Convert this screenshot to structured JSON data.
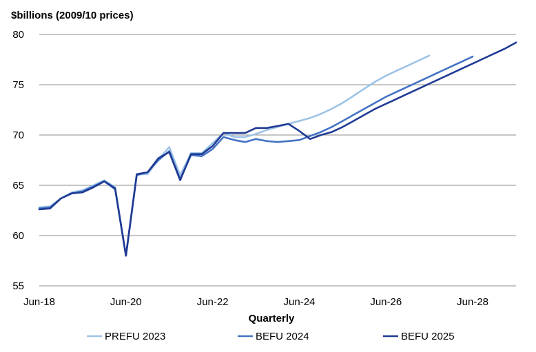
{
  "chart_data": {
    "type": "line",
    "ylabel": "$billions (2009/10 prices)",
    "xlabel": "Quarterly",
    "ylim": [
      55,
      80
    ],
    "yticks": [
      55,
      60,
      65,
      70,
      75,
      80
    ],
    "xlim": [
      2018.5,
      2029.5
    ],
    "xticks": [
      {
        "label": "Jun-18",
        "x": 2018.5
      },
      {
        "label": "Jun-20",
        "x": 2020.5
      },
      {
        "label": "Jun-22",
        "x": 2022.5
      },
      {
        "label": "Jun-24",
        "x": 2024.5
      },
      {
        "label": "Jun-26",
        "x": 2026.5
      },
      {
        "label": "Jun-28",
        "x": 2028.5
      }
    ],
    "grid": true,
    "legend_position": "bottom",
    "series": [
      {
        "name": "PREFU 2023",
        "color": "#9dc3e6",
        "points": [
          [
            2018.5,
            62.8
          ],
          [
            2018.75,
            62.9
          ],
          [
            2019.0,
            63.7
          ],
          [
            2019.25,
            64.3
          ],
          [
            2019.5,
            64.5
          ],
          [
            2019.75,
            65.0
          ],
          [
            2020.0,
            65.5
          ],
          [
            2020.25,
            64.8
          ],
          [
            2020.5,
            58.0
          ],
          [
            2020.75,
            66.1
          ],
          [
            2021.0,
            66.1
          ],
          [
            2021.25,
            67.6
          ],
          [
            2021.5,
            68.8
          ],
          [
            2021.75,
            66.0
          ],
          [
            2022.0,
            68.2
          ],
          [
            2022.25,
            68.2
          ],
          [
            2022.5,
            69.2
          ],
          [
            2022.75,
            70.2
          ],
          [
            2023.0,
            69.8
          ],
          [
            2023.25,
            69.8
          ],
          [
            2023.5,
            70.1
          ],
          [
            2023.75,
            70.5
          ],
          [
            2024.0,
            70.8
          ],
          [
            2024.25,
            71.1
          ],
          [
            2024.5,
            71.4
          ],
          [
            2024.75,
            71.7
          ],
          [
            2025.0,
            72.1
          ],
          [
            2025.25,
            72.6
          ],
          [
            2025.5,
            73.2
          ],
          [
            2025.75,
            73.9
          ],
          [
            2026.0,
            74.6
          ],
          [
            2026.25,
            75.3
          ],
          [
            2026.5,
            75.9
          ],
          [
            2026.75,
            76.4
          ],
          [
            2027.0,
            76.9
          ],
          [
            2027.25,
            77.4
          ],
          [
            2027.5,
            77.9
          ]
        ]
      },
      {
        "name": "BEFU 2024",
        "color": "#4472c4",
        "points": [
          [
            2018.5,
            62.7
          ],
          [
            2018.75,
            62.8
          ],
          [
            2019.0,
            63.7
          ],
          [
            2019.25,
            64.2
          ],
          [
            2019.5,
            64.4
          ],
          [
            2019.75,
            64.9
          ],
          [
            2020.0,
            65.4
          ],
          [
            2020.25,
            64.6
          ],
          [
            2020.5,
            58.0
          ],
          [
            2020.75,
            66.0
          ],
          [
            2021.0,
            66.3
          ],
          [
            2021.25,
            67.5
          ],
          [
            2021.5,
            68.4
          ],
          [
            2021.75,
            65.6
          ],
          [
            2022.0,
            68.0
          ],
          [
            2022.25,
            67.9
          ],
          [
            2022.5,
            68.6
          ],
          [
            2022.75,
            69.8
          ],
          [
            2023.0,
            69.5
          ],
          [
            2023.25,
            69.3
          ],
          [
            2023.5,
            69.6
          ],
          [
            2023.75,
            69.4
          ],
          [
            2024.0,
            69.3
          ],
          [
            2024.25,
            69.4
          ],
          [
            2024.5,
            69.5
          ],
          [
            2024.75,
            69.9
          ],
          [
            2025.0,
            70.3
          ],
          [
            2025.25,
            70.8
          ],
          [
            2025.5,
            71.4
          ],
          [
            2025.75,
            72.0
          ],
          [
            2026.0,
            72.6
          ],
          [
            2026.25,
            73.2
          ],
          [
            2026.5,
            73.8
          ],
          [
            2026.75,
            74.3
          ],
          [
            2027.0,
            74.8
          ],
          [
            2027.25,
            75.3
          ],
          [
            2027.5,
            75.8
          ],
          [
            2027.75,
            76.3
          ],
          [
            2028.0,
            76.8
          ],
          [
            2028.25,
            77.3
          ],
          [
            2028.5,
            77.8
          ]
        ]
      },
      {
        "name": "BEFU 2025",
        "color": "#1f3a93",
        "points": [
          [
            2018.5,
            62.6
          ],
          [
            2018.75,
            62.7
          ],
          [
            2019.0,
            63.7
          ],
          [
            2019.25,
            64.2
          ],
          [
            2019.5,
            64.3
          ],
          [
            2019.75,
            64.8
          ],
          [
            2020.0,
            65.4
          ],
          [
            2020.25,
            64.7
          ],
          [
            2020.5,
            58.0
          ],
          [
            2020.75,
            66.1
          ],
          [
            2021.0,
            66.3
          ],
          [
            2021.25,
            67.7
          ],
          [
            2021.5,
            68.3
          ],
          [
            2021.75,
            65.5
          ],
          [
            2022.0,
            68.1
          ],
          [
            2022.25,
            68.1
          ],
          [
            2022.5,
            68.9
          ],
          [
            2022.75,
            70.2
          ],
          [
            2023.0,
            70.2
          ],
          [
            2023.25,
            70.2
          ],
          [
            2023.5,
            70.7
          ],
          [
            2023.75,
            70.7
          ],
          [
            2024.0,
            70.9
          ],
          [
            2024.25,
            71.1
          ],
          [
            2024.5,
            70.4
          ],
          [
            2024.75,
            69.6
          ],
          [
            2025.0,
            70.0
          ],
          [
            2025.25,
            70.3
          ],
          [
            2025.5,
            70.8
          ],
          [
            2025.75,
            71.4
          ],
          [
            2026.0,
            72.0
          ],
          [
            2026.25,
            72.6
          ],
          [
            2026.5,
            73.1
          ],
          [
            2026.75,
            73.6
          ],
          [
            2027.0,
            74.1
          ],
          [
            2027.25,
            74.6
          ],
          [
            2027.5,
            75.1
          ],
          [
            2027.75,
            75.6
          ],
          [
            2028.0,
            76.1
          ],
          [
            2028.25,
            76.6
          ],
          [
            2028.5,
            77.1
          ],
          [
            2028.75,
            77.6
          ],
          [
            2029.0,
            78.1
          ],
          [
            2029.25,
            78.6
          ],
          [
            2029.5,
            79.2
          ]
        ]
      }
    ]
  }
}
